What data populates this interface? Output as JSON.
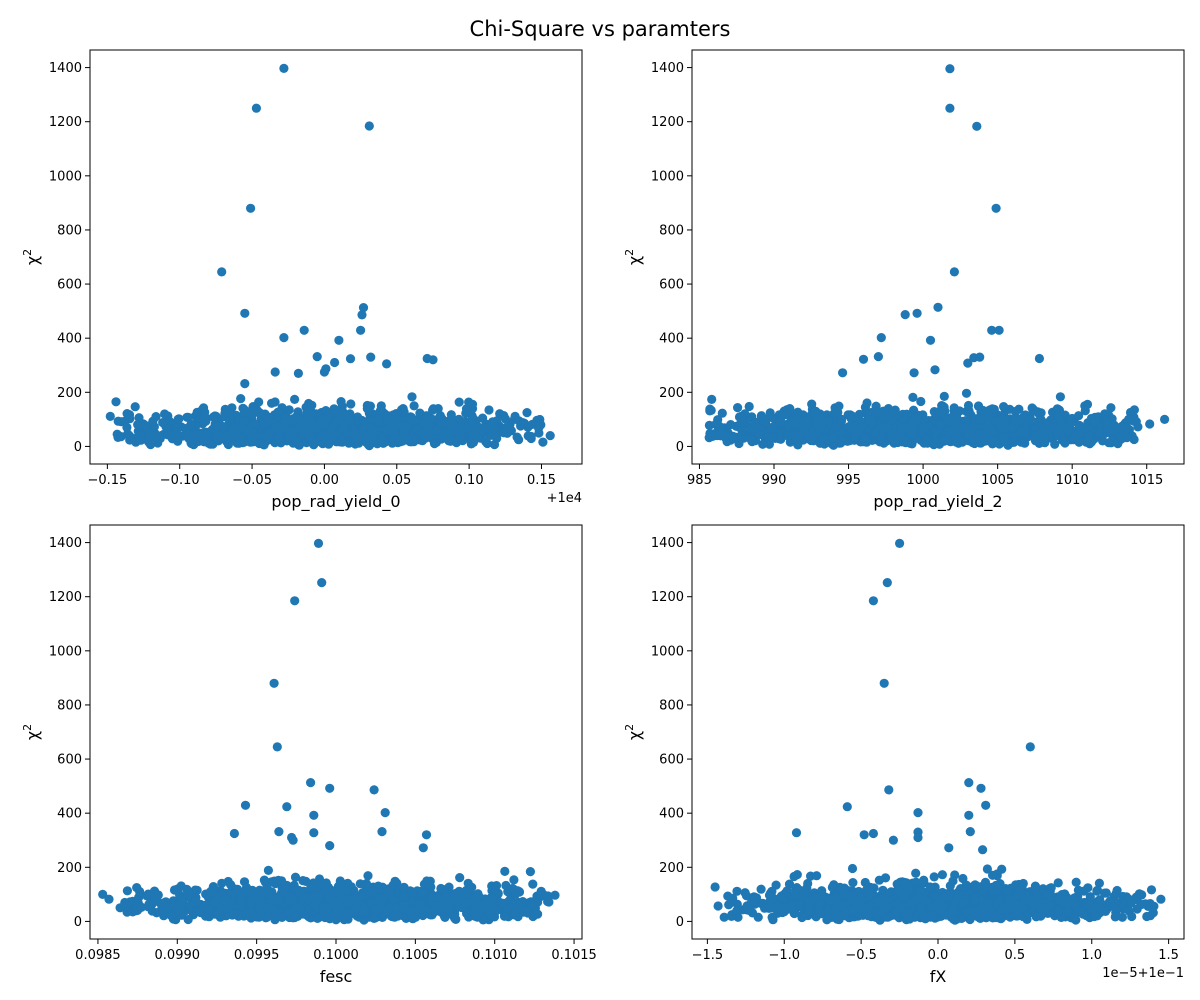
{
  "figure": {
    "title": "Chi-Square vs paramters"
  },
  "colors": {
    "marker": "#1f77b4",
    "axes": "#000000",
    "background": "#ffffff"
  },
  "chart_data": [
    {
      "type": "scatter",
      "xlabel": "pop_rad_yield_0",
      "ylabel": "χ2",
      "x_offset_text": "+1e4",
      "xlim": [
        -0.162,
        0.178
      ],
      "ylim": [
        -65,
        1465
      ],
      "xticks": [
        -0.15,
        -0.1,
        -0.05,
        0.0,
        0.05,
        0.1,
        0.15
      ],
      "xtick_labels": [
        "−0.15",
        "−0.10",
        "−0.05",
        "0.00",
        "0.05",
        "0.10",
        "0.15"
      ],
      "yticks": [
        0,
        200,
        400,
        600,
        800,
        1000,
        1200,
        1400
      ],
      "ytick_labels": [
        "0",
        "200",
        "400",
        "600",
        "800",
        "1000",
        "1200",
        "1400"
      ],
      "bulk": {
        "x_center": 0.0,
        "x_spread": 0.07,
        "count": 1500,
        "y_scale": 48
      },
      "points": [
        {
          "x": -0.028,
          "y": 1397
        },
        {
          "x": -0.047,
          "y": 1250
        },
        {
          "x": 0.031,
          "y": 1184
        },
        {
          "x": -0.051,
          "y": 880
        },
        {
          "x": -0.071,
          "y": 645
        },
        {
          "x": 0.027,
          "y": 513
        },
        {
          "x": -0.055,
          "y": 492
        },
        {
          "x": 0.026,
          "y": 486
        },
        {
          "x": -0.014,
          "y": 429
        },
        {
          "x": 0.025,
          "y": 429
        },
        {
          "x": -0.028,
          "y": 402
        },
        {
          "x": 0.01,
          "y": 392
        },
        {
          "x": -0.005,
          "y": 332
        },
        {
          "x": 0.032,
          "y": 330
        },
        {
          "x": 0.018,
          "y": 324
        },
        {
          "x": 0.071,
          "y": 325
        },
        {
          "x": 0.075,
          "y": 320
        },
        {
          "x": 0.007,
          "y": 310
        },
        {
          "x": 0.043,
          "y": 305
        },
        {
          "x": 0.001,
          "y": 287
        },
        {
          "x": 0.0,
          "y": 275
        },
        {
          "x": -0.018,
          "y": 270
        },
        {
          "x": -0.034,
          "y": 275
        },
        {
          "x": -0.055,
          "y": 232
        },
        {
          "x": -0.144,
          "y": 165
        },
        {
          "x": -0.148,
          "y": 111
        },
        {
          "x": 0.148,
          "y": 68
        },
        {
          "x": 0.156,
          "y": 40
        },
        {
          "x": 0.151,
          "y": 16
        },
        {
          "x": 0.14,
          "y": 125
        }
      ]
    },
    {
      "type": "scatter",
      "xlabel": "pop_rad_yield_2",
      "ylabel": "χ2",
      "x_offset_text": "",
      "xlim": [
        984.5,
        1017.5
      ],
      "ylim": [
        -65,
        1465
      ],
      "xticks": [
        985,
        990,
        995,
        1000,
        1005,
        1010,
        1015
      ],
      "xtick_labels": [
        "985",
        "990",
        "995",
        "1000",
        "1005",
        "1010",
        "1015"
      ],
      "yticks": [
        0,
        200,
        400,
        600,
        800,
        1000,
        1200,
        1400
      ],
      "ytick_labels": [
        "0",
        "200",
        "400",
        "600",
        "800",
        "1000",
        "1200",
        "1400"
      ],
      "bulk": {
        "x_center": 1000.0,
        "x_spread": 8.5,
        "count": 1500,
        "y_scale": 48
      },
      "points": [
        {
          "x": 1001.8,
          "y": 1396
        },
        {
          "x": 1001.8,
          "y": 1250
        },
        {
          "x": 1003.6,
          "y": 1183
        },
        {
          "x": 1004.9,
          "y": 880
        },
        {
          "x": 1002.1,
          "y": 645
        },
        {
          "x": 1001.0,
          "y": 514
        },
        {
          "x": 998.8,
          "y": 487
        },
        {
          "x": 999.6,
          "y": 492
        },
        {
          "x": 1004.6,
          "y": 429
        },
        {
          "x": 1005.1,
          "y": 429
        },
        {
          "x": 997.2,
          "y": 402
        },
        {
          "x": 1000.5,
          "y": 392
        },
        {
          "x": 1003.0,
          "y": 308
        },
        {
          "x": 1003.4,
          "y": 328
        },
        {
          "x": 1003.8,
          "y": 330
        },
        {
          "x": 996.0,
          "y": 322
        },
        {
          "x": 997.0,
          "y": 332
        },
        {
          "x": 1007.8,
          "y": 325
        },
        {
          "x": 1000.8,
          "y": 283
        },
        {
          "x": 999.4,
          "y": 272
        },
        {
          "x": 994.6,
          "y": 272
        },
        {
          "x": 985.7,
          "y": 138
        },
        {
          "x": 986.1,
          "y": 82
        },
        {
          "x": 1015.2,
          "y": 83
        },
        {
          "x": 1016.2,
          "y": 100
        },
        {
          "x": 1013.3,
          "y": 36
        },
        {
          "x": 1012.6,
          "y": 143
        }
      ]
    },
    {
      "type": "scatter",
      "xlabel": "fesc",
      "ylabel": "χ2",
      "x_offset_text": "",
      "xlim": [
        0.09845,
        0.10155
      ],
      "ylim": [
        -65,
        1465
      ],
      "xticks": [
        0.0985,
        0.099,
        0.0995,
        0.1,
        0.1005,
        0.101,
        0.1015
      ],
      "xtick_labels": [
        "0.0985",
        "0.0990",
        "0.0995",
        "0.1000",
        "0.1005",
        "0.1010",
        "0.1015"
      ],
      "yticks": [
        0,
        200,
        400,
        600,
        800,
        1000,
        1200,
        1400
      ],
      "ytick_labels": [
        "0",
        "200",
        "400",
        "600",
        "800",
        "1000",
        "1200",
        "1400"
      ],
      "bulk": {
        "x_center": 0.1,
        "x_spread": 0.00068,
        "count": 1500,
        "y_scale": 48
      },
      "points": [
        {
          "x": 0.09989,
          "y": 1397
        },
        {
          "x": 0.09991,
          "y": 1252
        },
        {
          "x": 0.09974,
          "y": 1185
        },
        {
          "x": 0.09961,
          "y": 880
        },
        {
          "x": 0.09963,
          "y": 645
        },
        {
          "x": 0.09984,
          "y": 513
        },
        {
          "x": 0.09996,
          "y": 492
        },
        {
          "x": 0.10024,
          "y": 486
        },
        {
          "x": 0.09943,
          "y": 429
        },
        {
          "x": 0.09969,
          "y": 424
        },
        {
          "x": 0.10031,
          "y": 402
        },
        {
          "x": 0.09986,
          "y": 392
        },
        {
          "x": 0.09964,
          "y": 332
        },
        {
          "x": 0.09986,
          "y": 328
        },
        {
          "x": 0.09936,
          "y": 325
        },
        {
          "x": 0.10057,
          "y": 320
        },
        {
          "x": 0.09972,
          "y": 310
        },
        {
          "x": 0.10029,
          "y": 332
        },
        {
          "x": 0.09973,
          "y": 300
        },
        {
          "x": 0.09996,
          "y": 280
        },
        {
          "x": 0.10055,
          "y": 272
        },
        {
          "x": 0.09853,
          "y": 100
        },
        {
          "x": 0.09857,
          "y": 82
        },
        {
          "x": 0.10138,
          "y": 97
        },
        {
          "x": 0.10127,
          "y": 27
        },
        {
          "x": 0.10124,
          "y": 138
        }
      ]
    },
    {
      "type": "scatter",
      "xlabel": "fX",
      "ylabel": "χ2",
      "x_offset_text": "1e−5+1e−1",
      "xlim": [
        -1.6,
        1.6
      ],
      "ylim": [
        -65,
        1465
      ],
      "xticks": [
        -1.5,
        -1.0,
        -0.5,
        0.0,
        0.5,
        1.0,
        1.5
      ],
      "xtick_labels": [
        "−1.5",
        "−1.0",
        "−0.5",
        "0.0",
        "0.5",
        "1.0",
        "1.5"
      ],
      "yticks": [
        0,
        200,
        400,
        600,
        800,
        1000,
        1200,
        1400
      ],
      "ytick_labels": [
        "0",
        "200",
        "400",
        "600",
        "800",
        "1000",
        "1200",
        "1400"
      ],
      "bulk": {
        "x_center": 0.0,
        "x_spread": 0.68,
        "count": 1500,
        "y_scale": 48
      },
      "points": [
        {
          "x": -0.25,
          "y": 1397
        },
        {
          "x": -0.33,
          "y": 1252
        },
        {
          "x": -0.42,
          "y": 1185
        },
        {
          "x": -0.35,
          "y": 880
        },
        {
          "x": 0.6,
          "y": 645
        },
        {
          "x": 0.2,
          "y": 513
        },
        {
          "x": 0.28,
          "y": 492
        },
        {
          "x": -0.32,
          "y": 486
        },
        {
          "x": -0.59,
          "y": 424
        },
        {
          "x": 0.31,
          "y": 429
        },
        {
          "x": -0.13,
          "y": 402
        },
        {
          "x": 0.2,
          "y": 392
        },
        {
          "x": -0.92,
          "y": 328
        },
        {
          "x": -0.42,
          "y": 325
        },
        {
          "x": -0.13,
          "y": 330
        },
        {
          "x": -0.48,
          "y": 320
        },
        {
          "x": -0.13,
          "y": 310
        },
        {
          "x": 0.21,
          "y": 332
        },
        {
          "x": -0.29,
          "y": 300
        },
        {
          "x": 0.07,
          "y": 272
        },
        {
          "x": 0.29,
          "y": 265
        },
        {
          "x": -1.45,
          "y": 127
        },
        {
          "x": -1.43,
          "y": 57
        },
        {
          "x": 1.45,
          "y": 82
        },
        {
          "x": 1.4,
          "y": 32
        },
        {
          "x": 1.26,
          "y": 18
        },
        {
          "x": 1.29,
          "y": 90
        }
      ]
    }
  ]
}
